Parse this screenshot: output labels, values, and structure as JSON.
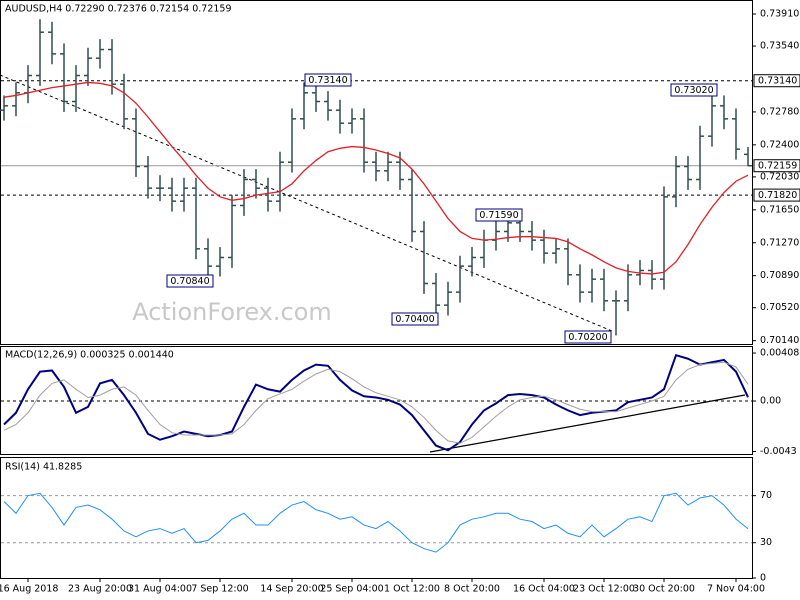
{
  "chart_data": [
    {
      "type": "ohlc",
      "title": "AUDUSD,H4  0.72290 0.72376 0.72154 0.72159",
      "watermark": "ActionForex.com",
      "color": "#2f4f4f",
      "ma_color": "#e0202a",
      "open": [
        0.728,
        0.7285,
        0.73,
        0.732,
        0.737,
        0.7345,
        0.729,
        0.732,
        0.734,
        0.735,
        0.731,
        0.727,
        0.7215,
        0.719,
        0.719,
        0.7175,
        0.719,
        0.712,
        0.71,
        0.711,
        0.717,
        0.72,
        0.719,
        0.7175,
        0.722,
        0.727,
        0.73,
        0.729,
        0.728,
        0.7265,
        0.727,
        0.722,
        0.721,
        0.722,
        0.72,
        0.714,
        0.708,
        0.7055,
        0.707,
        0.71,
        0.711,
        0.713,
        0.714,
        0.715,
        0.714,
        0.713,
        0.7115,
        0.712,
        0.709,
        0.707,
        0.7085,
        0.706,
        0.706,
        0.709,
        0.7095,
        0.7085,
        0.718,
        0.7215,
        0.72,
        0.725,
        0.7285,
        0.727,
        0.7229
      ],
      "high": [
        0.7297,
        0.7312,
        0.7332,
        0.7385,
        0.7382,
        0.7357,
        0.7332,
        0.7352,
        0.7362,
        0.7362,
        0.7322,
        0.7282,
        0.7227,
        0.7205,
        0.7202,
        0.7202,
        0.7202,
        0.7132,
        0.7122,
        0.7182,
        0.7212,
        0.7212,
        0.7202,
        0.7232,
        0.7282,
        0.7312,
        0.7314,
        0.7302,
        0.7292,
        0.7282,
        0.7282,
        0.7232,
        0.7232,
        0.7232,
        0.7212,
        0.7152,
        0.7092,
        0.7082,
        0.7112,
        0.7122,
        0.7142,
        0.7152,
        0.7159,
        0.7158,
        0.7152,
        0.7142,
        0.7132,
        0.7132,
        0.7102,
        0.7097,
        0.7097,
        0.7072,
        0.7102,
        0.7107,
        0.7107,
        0.7192,
        0.7227,
        0.7227,
        0.7262,
        0.7302,
        0.7297,
        0.7282,
        0.72376
      ],
      "low": [
        0.7268,
        0.7273,
        0.7288,
        0.7308,
        0.7333,
        0.7278,
        0.7278,
        0.7308,
        0.7328,
        0.7298,
        0.7258,
        0.7203,
        0.7178,
        0.7175,
        0.7163,
        0.7163,
        0.7108,
        0.7084,
        0.7088,
        0.7098,
        0.7158,
        0.7178,
        0.7163,
        0.7163,
        0.7208,
        0.7258,
        0.7278,
        0.7268,
        0.7253,
        0.7253,
        0.7208,
        0.7198,
        0.7198,
        0.7188,
        0.7128,
        0.7068,
        0.704,
        0.7043,
        0.7058,
        0.7088,
        0.7098,
        0.7118,
        0.7128,
        0.7128,
        0.7118,
        0.7103,
        0.7103,
        0.7078,
        0.7058,
        0.7058,
        0.7048,
        0.702,
        0.7048,
        0.7078,
        0.7073,
        0.7073,
        0.7168,
        0.7188,
        0.7188,
        0.7238,
        0.7258,
        0.7223,
        0.72154
      ],
      "close": [
        0.7285,
        0.73,
        0.732,
        0.737,
        0.7345,
        0.729,
        0.732,
        0.734,
        0.735,
        0.731,
        0.727,
        0.7215,
        0.719,
        0.719,
        0.7175,
        0.719,
        0.712,
        0.71,
        0.711,
        0.717,
        0.72,
        0.719,
        0.7175,
        0.722,
        0.727,
        0.73,
        0.729,
        0.728,
        0.7265,
        0.727,
        0.722,
        0.721,
        0.722,
        0.72,
        0.714,
        0.708,
        0.7055,
        0.707,
        0.71,
        0.711,
        0.713,
        0.714,
        0.715,
        0.714,
        0.713,
        0.7115,
        0.712,
        0.709,
        0.707,
        0.7085,
        0.706,
        0.706,
        0.709,
        0.7095,
        0.7085,
        0.718,
        0.7215,
        0.72,
        0.725,
        0.7285,
        0.727,
        0.7235,
        0.72159
      ],
      "ma_values": [
        0.7295,
        0.7297,
        0.73,
        0.7303,
        0.7306,
        0.7308,
        0.731,
        0.7312,
        0.7311,
        0.7308,
        0.73,
        0.7288,
        0.7272,
        0.7255,
        0.7238,
        0.7222,
        0.7205,
        0.719,
        0.718,
        0.7176,
        0.7178,
        0.7182,
        0.7184,
        0.7186,
        0.7195,
        0.721,
        0.7222,
        0.7232,
        0.7236,
        0.7238,
        0.7237,
        0.7234,
        0.723,
        0.7225,
        0.7212,
        0.7195,
        0.7175,
        0.7155,
        0.714,
        0.7132,
        0.713,
        0.7131,
        0.7133,
        0.7134,
        0.7134,
        0.7133,
        0.7132,
        0.7128,
        0.712,
        0.7113,
        0.7105,
        0.7098,
        0.7094,
        0.7092,
        0.7091,
        0.7093,
        0.7105,
        0.7125,
        0.7148,
        0.7168,
        0.7185,
        0.7198,
        0.7205
      ],
      "ylim": [
        0.7009,
        0.7406
      ],
      "yticks": [
        {
          "value": 0.7391,
          "label": "0.73910"
        },
        {
          "value": 0.7354,
          "label": "0.73540"
        },
        {
          "value": 0.7278,
          "label": "0.72780"
        },
        {
          "value": 0.724,
          "label": "0.72400"
        },
        {
          "value": 0.7203,
          "label": "0.72030"
        },
        {
          "value": 0.7165,
          "label": "0.71650"
        },
        {
          "value": 0.7127,
          "label": "0.71270"
        },
        {
          "value": 0.7089,
          "label": "0.70890"
        },
        {
          "value": 0.7052,
          "label": "0.70520"
        },
        {
          "value": 0.7014,
          "label": "0.70140"
        }
      ],
      "levels": [
        {
          "value": 0.7314,
          "label": "0.73140",
          "style": "dashed"
        },
        {
          "value": 0.72159,
          "label": "0.72159",
          "style": "solid"
        },
        {
          "value": 0.7182,
          "label": "0.71820",
          "style": "dashed"
        }
      ],
      "annotations": [
        "0.73140",
        "0.70840",
        "0.73020",
        "0.71590",
        "0.70400",
        "0.70200"
      ]
    },
    {
      "type": "line",
      "title": "MACD(12,26,9) 0.000325 0.001440",
      "zero_line": true,
      "series": [
        {
          "color": "#000080",
          "values": [
            -0.002,
            -0.001,
            0.001,
            0.0025,
            0.0026,
            0.0012,
            -0.001,
            -0.0005,
            0.0015,
            0.0018,
            0.0005,
            -0.001,
            -0.0028,
            -0.0033,
            -0.003,
            -0.0026,
            -0.0028,
            -0.003,
            -0.0029,
            -0.0026,
            -0.0005,
            0.0014,
            0.001,
            0.0008,
            0.0018,
            0.0026,
            0.0031,
            0.003,
            0.0018,
            0.0009,
            0.0004,
            0.0003,
            0.0001,
            -0.0003,
            -0.0012,
            -0.0025,
            -0.0038,
            -0.0042,
            -0.0035,
            -0.002,
            -0.0008,
            -0.0002,
            0.0005,
            0.0006,
            0.0005,
            0.0003,
            -0.0003,
            -0.0008,
            -0.0012,
            -0.001,
            -0.0009,
            -0.0008,
            -0.0001,
            0.0001,
            0.0003,
            0.001,
            0.0039,
            0.0036,
            0.0031,
            0.0033,
            0.0035,
            0.0025,
            0.000325
          ]
        },
        {
          "color": "#a0a0a0",
          "values": [
            -0.0025,
            -0.002,
            -0.001,
            0.0005,
            0.0015,
            0.0018,
            0.001,
            0.0003,
            0.0005,
            0.001,
            0.0012,
            0.0005,
            -0.0008,
            -0.002,
            -0.0027,
            -0.0029,
            -0.0029,
            -0.0029,
            -0.0029,
            -0.0028,
            -0.002,
            -0.0008,
            0.0002,
            0.0006,
            0.001,
            0.0017,
            0.0023,
            0.0027,
            0.0025,
            0.0019,
            0.0012,
            0.0007,
            0.0004,
            0.0001,
            -0.0005,
            -0.0014,
            -0.0025,
            -0.0034,
            -0.0036,
            -0.0031,
            -0.0022,
            -0.0013,
            -0.0005,
            0.0001,
            0.0003,
            0.0004,
            0.0001,
            -0.0003,
            -0.0007,
            -0.0009,
            -0.0009,
            -0.0009,
            -0.0006,
            -0.0003,
            0.0,
            0.0004,
            0.0018,
            0.0027,
            0.0031,
            0.0032,
            0.0033,
            0.0029,
            0.00144
          ]
        }
      ],
      "ylim": [
        -0.0046,
        0.0046
      ],
      "yticks": [
        0.004085,
        {
          "value": 0,
          "label": "0.00"
        },
        -0.0043
      ]
    },
    {
      "type": "line",
      "title": "RSI(14) 41.8285",
      "grid": true,
      "series": [
        {
          "color": "#1e90ff",
          "values": [
            65,
            55,
            70,
            72,
            60,
            45,
            60,
            62,
            58,
            50,
            40,
            35,
            40,
            42,
            38,
            42,
            30,
            32,
            40,
            50,
            55,
            45,
            45,
            55,
            62,
            65,
            58,
            55,
            50,
            52,
            45,
            42,
            48,
            40,
            30,
            25,
            22,
            30,
            45,
            50,
            52,
            55,
            55,
            50,
            48,
            42,
            45,
            38,
            35,
            45,
            35,
            42,
            50,
            52,
            48,
            70,
            72,
            62,
            68,
            70,
            62,
            50,
            41.8285
          ]
        }
      ],
      "ylim": [
        0,
        102
      ],
      "yticks": [
        70,
        30,
        0
      ],
      "categories": [
        null,
        null,
        "16 Aug 2018",
        null,
        null,
        null,
        null,
        null,
        "23 Aug 20:00",
        null,
        null,
        null,
        null,
        "31 Aug 04:00",
        null,
        null,
        null,
        null,
        "7 Sep 12:00",
        null,
        null,
        null,
        null,
        null,
        "14 Sep 20:00",
        null,
        null,
        null,
        null,
        "25 Sep 04:00",
        null,
        null,
        null,
        null,
        "1 Oct 12:00",
        null,
        null,
        null,
        null,
        "8 Oct 20:00",
        null,
        null,
        null,
        null,
        null,
        "16 Oct 04:00",
        null,
        null,
        null,
        null,
        "23 Oct 12:00",
        null,
        null,
        null,
        null,
        "30 Oct 20:00",
        null,
        null,
        null,
        null,
        null,
        "7 Nov 04:00",
        null
      ]
    }
  ]
}
